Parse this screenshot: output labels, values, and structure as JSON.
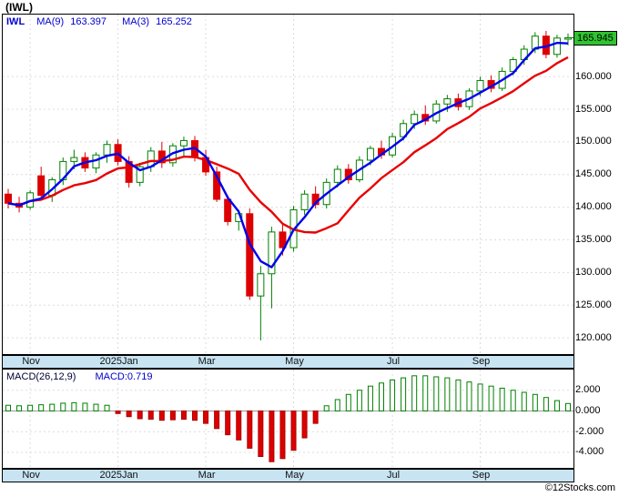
{
  "page": {
    "title": "(IWL)",
    "watermark": "©12Stocks.com"
  },
  "main_chart": {
    "legend": {
      "symbol": "IWL",
      "ma9_label": "MA(9)",
      "ma9_value": "163.397",
      "ma3_label": "MA(3)",
      "ma3_value": "165.252"
    },
    "last_price_label": "165.945"
  },
  "macd_chart": {
    "legend_left": "MACD(26,12,9)",
    "legend_value": "MACD:0.719"
  },
  "chart_data": {
    "type": "candlestick",
    "title": "(IWL)",
    "x_axis_months": [
      "Nov",
      "2025Jan",
      "Mar",
      "May",
      "Jul",
      "Sep"
    ],
    "x_ticks": [
      {
        "index": 2,
        "label": "Nov"
      },
      {
        "index": 10,
        "label": "2025Jan"
      },
      {
        "index": 18,
        "label": "Mar"
      },
      {
        "index": 26,
        "label": "May"
      },
      {
        "index": 35,
        "label": "Jul"
      },
      {
        "index": 43,
        "label": "Sep"
      }
    ],
    "price": {
      "y_ticks": [
        160,
        155,
        150,
        145,
        140,
        135,
        130,
        125,
        120
      ],
      "y_range": [
        117.5,
        169.5
      ],
      "last": 165.945,
      "ma": [
        {
          "period": 9,
          "value": 163.397,
          "color": "#e80000"
        },
        {
          "period": 3,
          "value": 165.252,
          "color": "#0000ee"
        }
      ],
      "candles": [
        [
          142.0,
          142.8,
          139.8,
          140.6
        ],
        [
          140.6,
          141.6,
          139.2,
          140.0
        ],
        [
          140.0,
          142.6,
          139.6,
          142.2
        ],
        [
          144.8,
          146.2,
          141.2,
          141.8
        ],
        [
          141.8,
          144.6,
          140.8,
          144.2
        ],
        [
          144.2,
          147.6,
          143.4,
          147.0
        ],
        [
          147.0,
          148.8,
          145.8,
          147.6
        ],
        [
          147.6,
          148.4,
          145.4,
          146.0
        ],
        [
          146.0,
          148.4,
          145.2,
          148.0
        ],
        [
          148.0,
          150.2,
          146.8,
          149.6
        ],
        [
          149.6,
          150.4,
          146.4,
          147.0
        ],
        [
          147.0,
          147.8,
          143.0,
          143.8
        ],
        [
          143.8,
          146.8,
          143.2,
          146.2
        ],
        [
          146.2,
          149.2,
          145.4,
          148.6
        ],
        [
          148.6,
          150.0,
          146.0,
          146.8
        ],
        [
          146.8,
          149.8,
          146.2,
          149.4
        ],
        [
          149.4,
          150.8,
          147.8,
          150.2
        ],
        [
          150.2,
          150.9,
          147.0,
          147.6
        ],
        [
          147.6,
          148.8,
          144.8,
          145.4
        ],
        [
          145.4,
          146.2,
          140.8,
          141.2
        ],
        [
          141.2,
          141.8,
          137.2,
          137.8
        ],
        [
          137.8,
          139.6,
          136.4,
          139.0
        ],
        [
          139.0,
          139.8,
          125.8,
          126.4
        ],
        [
          126.4,
          131.0,
          119.6,
          129.8
        ],
        [
          129.8,
          137.0,
          124.5,
          136.2
        ],
        [
          136.2,
          137.6,
          132.6,
          133.8
        ],
        [
          133.8,
          140.2,
          133.2,
          139.6
        ],
        [
          139.6,
          142.6,
          138.8,
          142.0
        ],
        [
          142.0,
          143.2,
          139.8,
          140.4
        ],
        [
          140.4,
          144.4,
          139.8,
          143.8
        ],
        [
          143.8,
          146.4,
          143.0,
          145.8
        ],
        [
          145.8,
          146.6,
          143.6,
          144.2
        ],
        [
          144.2,
          147.8,
          143.8,
          147.2
        ],
        [
          147.2,
          149.4,
          146.4,
          149.0
        ],
        [
          149.0,
          150.2,
          147.4,
          148.0
        ],
        [
          148.0,
          151.4,
          147.6,
          150.8
        ],
        [
          150.8,
          153.4,
          150.2,
          152.8
        ],
        [
          152.8,
          154.8,
          152.0,
          154.2
        ],
        [
          154.2,
          155.6,
          152.6,
          153.2
        ],
        [
          153.2,
          156.4,
          152.8,
          155.8
        ],
        [
          155.8,
          157.2,
          154.6,
          156.6
        ],
        [
          156.6,
          157.4,
          154.8,
          155.4
        ],
        [
          155.4,
          158.2,
          154.9,
          157.8
        ],
        [
          157.8,
          160.0,
          157.0,
          159.4
        ],
        [
          159.4,
          160.2,
          157.6,
          158.2
        ],
        [
          158.2,
          161.4,
          157.8,
          160.8
        ],
        [
          160.8,
          163.0,
          160.2,
          162.6
        ],
        [
          162.6,
          164.8,
          161.8,
          164.2
        ],
        [
          164.2,
          166.8,
          163.6,
          166.2
        ],
        [
          166.2,
          167.0,
          162.8,
          163.4
        ],
        [
          163.4,
          166.4,
          162.9,
          165.9
        ],
        [
          165.9,
          166.6,
          164.8,
          165.945
        ]
      ]
    },
    "macd": {
      "params": "26,12,9",
      "last": 0.719,
      "y_ticks": [
        2,
        0,
        -2,
        -4
      ],
      "y_range": [
        -5.5,
        4.0
      ],
      "histogram": [
        0.55,
        0.5,
        0.55,
        0.6,
        0.65,
        0.75,
        0.8,
        0.75,
        0.65,
        0.55,
        -0.25,
        -0.55,
        -0.75,
        -0.8,
        -0.9,
        -0.85,
        -0.8,
        -0.9,
        -1.2,
        -1.7,
        -2.3,
        -2.8,
        -3.6,
        -4.4,
        -4.9,
        -4.6,
        -3.8,
        -2.6,
        -1.2,
        0.5,
        1.1,
        1.6,
        2.0,
        2.4,
        2.7,
        3.0,
        3.2,
        3.4,
        3.4,
        3.3,
        3.2,
        3.0,
        2.8,
        2.6,
        2.4,
        2.2,
        2.0,
        1.8,
        1.6,
        1.3,
        1.0,
        0.719
      ]
    },
    "colors": {
      "up": "#008000",
      "down": "#dd0000",
      "ma9": "#e80000",
      "ma3": "#0000ee",
      "band_bg": "#c8e4f2",
      "last_box_bg": "#2fc42f",
      "grid": "#dcdcdc"
    },
    "legend_position": "top-left",
    "grid": true
  }
}
